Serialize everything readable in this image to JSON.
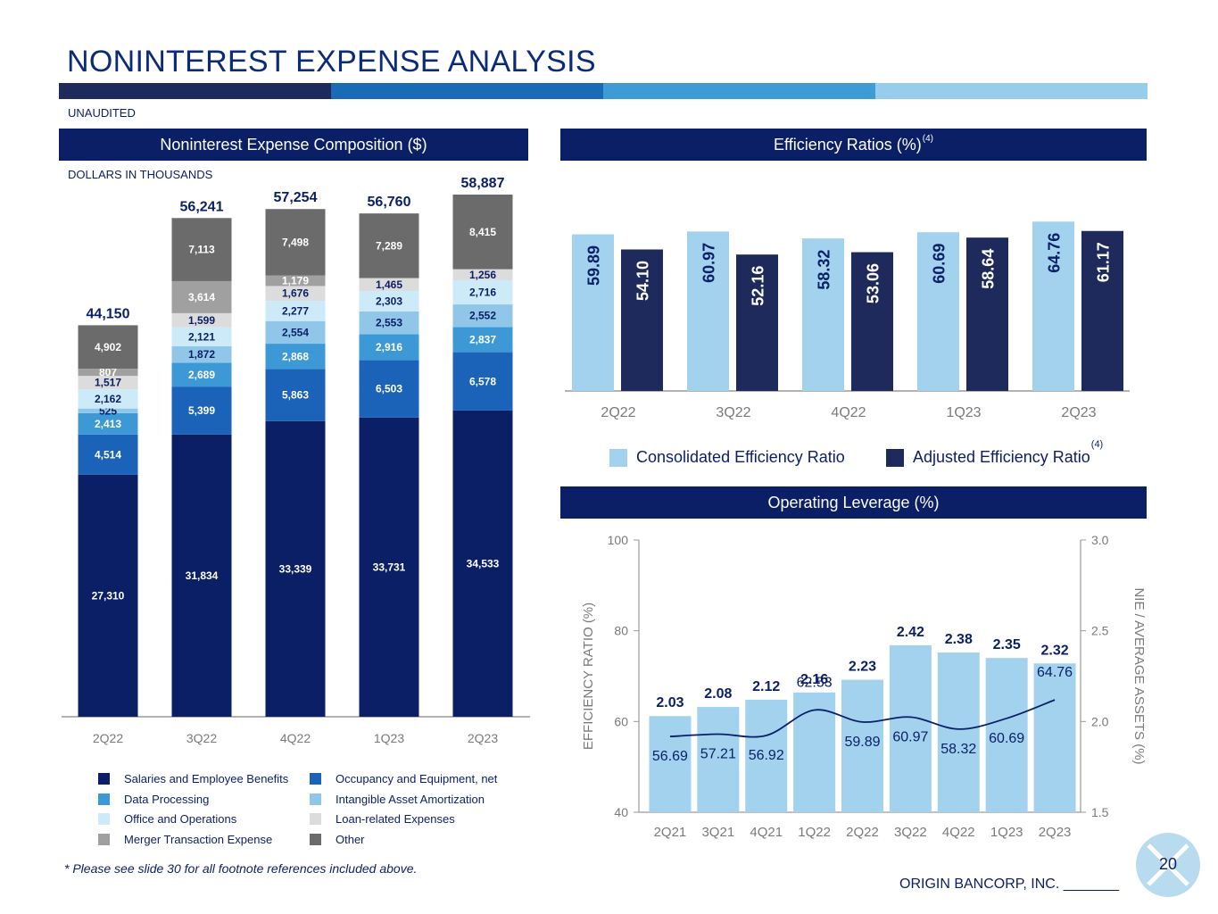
{
  "page": {
    "title": "NONINTEREST EXPENSE ANALYSIS",
    "unaudited": "UNAUDITED",
    "footnote": "* Please see slide 30 for all footnote references included above.",
    "company": "ORIGIN BANCORP, INC. _______",
    "page_number": "20",
    "stripe_colors": [
      "#1f2a5c",
      "#1a6bb5",
      "#3e9bd6",
      "#96cdeb"
    ]
  },
  "panels": {
    "composition_header": "Noninterest Expense Composition ($)",
    "composition_subtitle": "DOLLARS IN THOUSANDS",
    "efficiency_header": "Efficiency Ratios (%)",
    "efficiency_header_sup": "(4)",
    "leverage_header": "Operating Leverage (%)"
  },
  "chart_data": [
    {
      "type": "bar",
      "stacked": true,
      "categories": [
        "2Q22",
        "3Q22",
        "4Q22",
        "1Q23",
        "2Q23"
      ],
      "totals": [
        44150,
        56241,
        57254,
        56760,
        58887
      ],
      "total_labels": [
        "44,150",
        "56,241",
        "57,254",
        "56,760",
        "58,887"
      ],
      "ylim": [
        0,
        60000
      ],
      "series": [
        {
          "name": "Salaries and Employee Benefits",
          "color": "#0a1f66",
          "label_color": "#ffffff",
          "values": [
            27310,
            31834,
            33339,
            33731,
            34533
          ],
          "labels": [
            "27,310",
            "31,834",
            "33,339",
            "33,731",
            "34,533"
          ]
        },
        {
          "name": "Occupancy and Equipment, net",
          "color": "#1a63b8",
          "label_color": "#ffffff",
          "values": [
            4514,
            5399,
            5863,
            6503,
            6578
          ],
          "labels": [
            "4,514",
            "5,399",
            "5,863",
            "6,503",
            "6,578"
          ]
        },
        {
          "name": "Data Processing",
          "color": "#3d98d6",
          "label_color": "#ffffff",
          "values": [
            2413,
            2689,
            2868,
            2916,
            2837
          ],
          "labels": [
            "2,413",
            "2,689",
            "2,868",
            "2,916",
            "2,837"
          ]
        },
        {
          "name": "Intangible Asset Amortization",
          "color": "#90c7e9",
          "label_color": "#0a1f66",
          "values": [
            525,
            1872,
            2554,
            2553,
            2552
          ],
          "labels": [
            "525",
            "1,872",
            "2,554",
            "2,553",
            "2,552"
          ]
        },
        {
          "name": "Office and Operations",
          "color": "#cdeaf9",
          "label_color": "#0a1f66",
          "values": [
            2162,
            2121,
            2277,
            2303,
            2716
          ],
          "labels": [
            "2,162",
            "2,121",
            "2,277",
            "2,303",
            "2,716"
          ]
        },
        {
          "name": "Loan-related Expenses",
          "color": "#dcdcdc",
          "label_color": "#0a1f66",
          "values": [
            1517,
            1599,
            1676,
            1465,
            1256
          ],
          "labels": [
            "1,517",
            "1,599",
            "1,676",
            "1,465",
            "1,256"
          ]
        },
        {
          "name": "Merger Transaction Expense",
          "color": "#a0a0a0",
          "label_color": "#ffffff",
          "values": [
            807,
            3614,
            1179,
            0,
            0
          ],
          "labels": [
            "807",
            "3,614",
            "1,179",
            "",
            ""
          ]
        },
        {
          "name": "Other",
          "color": "#6b6b6b",
          "label_color": "#ffffff",
          "values": [
            4902,
            7113,
            7498,
            7289,
            8415
          ],
          "labels": [
            "4,902",
            "7,113",
            "7,498",
            "7,289",
            "8,415"
          ]
        }
      ],
      "legend_order": [
        0,
        1,
        2,
        3,
        4,
        5,
        6,
        7
      ]
    },
    {
      "type": "bar",
      "categories": [
        "2Q22",
        "3Q22",
        "4Q22",
        "1Q23",
        "2Q23"
      ],
      "ylim": [
        0,
        70
      ],
      "series": [
        {
          "name": "Consolidated Efficiency Ratio",
          "color": "#a3d2ef",
          "label_color": "#0a1f66",
          "values": [
            59.89,
            60.97,
            58.32,
            60.69,
            64.76
          ],
          "labels": [
            "59.89",
            "60.97",
            "58.32",
            "60.69",
            "64.76"
          ]
        },
        {
          "name": "Adjusted Efficiency Ratio",
          "name_sup": "(4)",
          "color": "#1f2a5c",
          "label_color": "#ffffff",
          "values": [
            54.1,
            52.16,
            53.06,
            58.64,
            61.17
          ],
          "labels": [
            "54.10",
            "52.16",
            "53.06",
            "58.64",
            "61.17"
          ]
        }
      ]
    },
    {
      "type": "bar",
      "categories": [
        "2Q21",
        "3Q21",
        "4Q21",
        "1Q22",
        "2Q22",
        "3Q22",
        "4Q22",
        "1Q23",
        "2Q23"
      ],
      "ylabel": "EFFICIENCY RATIO (%)",
      "y2label": "NIE / AVERAGE ASSETS (%)",
      "ylim": [
        40,
        100
      ],
      "y_ticks": [
        "40",
        "60",
        "80",
        "100"
      ],
      "y2lim": [
        1.5,
        3.0
      ],
      "y2_ticks": [
        "1.5",
        "2.0",
        "2.5",
        "3.0"
      ],
      "bars": {
        "color": "#a3d2ef",
        "axis": "y2",
        "values": [
          2.03,
          2.08,
          2.12,
          2.16,
          2.23,
          2.42,
          2.38,
          2.35,
          2.32
        ],
        "labels": [
          "2.03",
          "2.08",
          "2.12",
          "2.16",
          "2.23",
          "2.42",
          "2.38",
          "2.35",
          "2.32"
        ]
      },
      "line": {
        "color": "#0a1f66",
        "axis": "y",
        "values": [
          56.69,
          57.21,
          56.92,
          62.53,
          59.89,
          60.97,
          58.32,
          60.69,
          64.76
        ],
        "labels": [
          "56.69",
          "57.21",
          "56.92",
          "62.53",
          "59.89",
          "60.97",
          "58.32",
          "60.69",
          "64.76"
        ]
      }
    }
  ]
}
